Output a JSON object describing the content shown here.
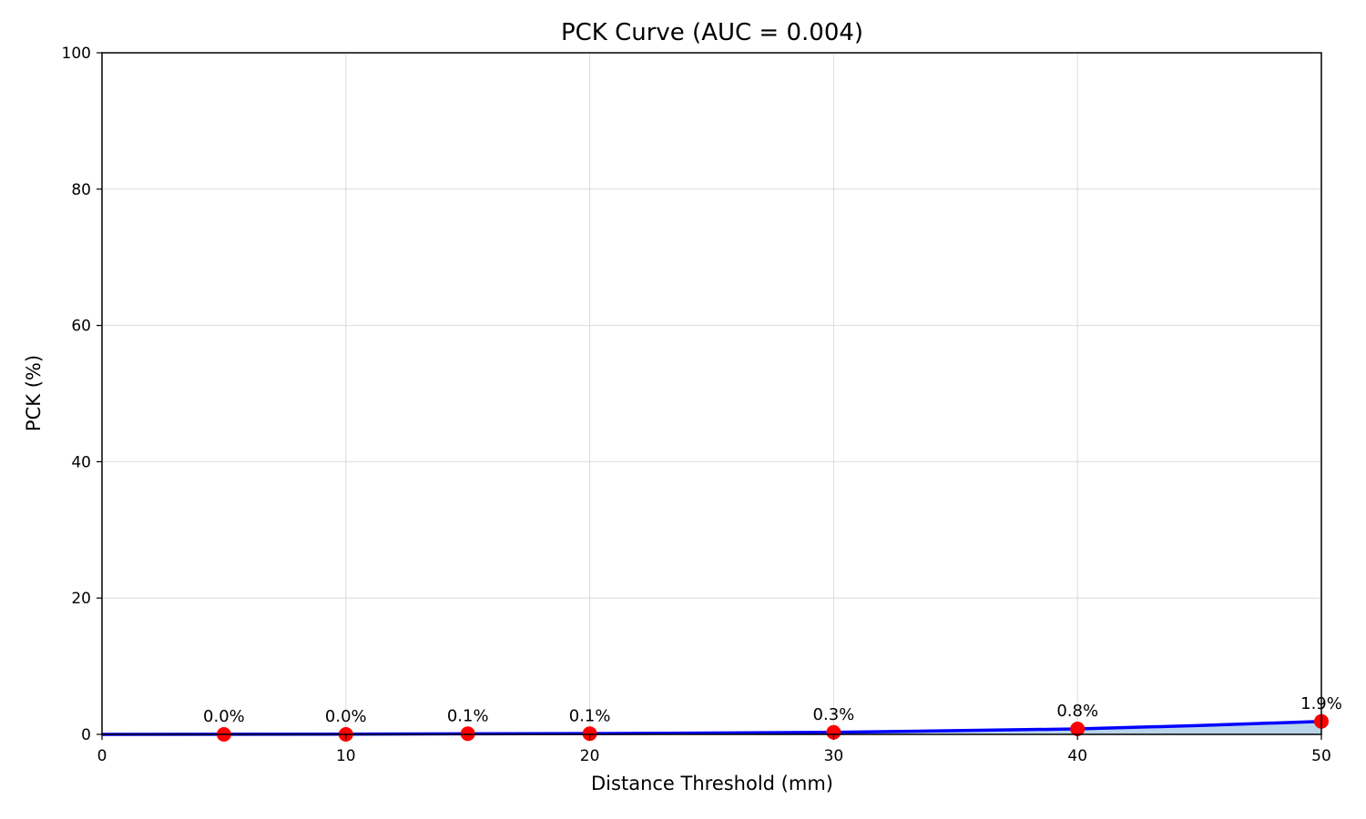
{
  "chart_data": {
    "type": "line",
    "title": "PCK Curve (AUC = 0.004)",
    "xlabel": "Distance Threshold (mm)",
    "ylabel": "PCK (%)",
    "xlim": [
      0,
      50
    ],
    "ylim": [
      0,
      100
    ],
    "xticks": [
      "0",
      "10",
      "20",
      "30",
      "40",
      "50"
    ],
    "yticks": [
      "0",
      "20",
      "40",
      "60",
      "80",
      "100"
    ],
    "grid": true,
    "line_color": "#0000ff",
    "marker_color": "#ff0000",
    "fill_color": "#b9d4ea",
    "curve": {
      "x": [
        0,
        5,
        10,
        15,
        20,
        25,
        30,
        35,
        40,
        45,
        50
      ],
      "y": [
        0,
        0.02,
        0.03,
        0.08,
        0.12,
        0.2,
        0.3,
        0.55,
        0.8,
        1.3,
        1.9
      ]
    },
    "markers": [
      {
        "x": 5,
        "y": 0.0,
        "label": "0.0%"
      },
      {
        "x": 10,
        "y": 0.0,
        "label": "0.0%"
      },
      {
        "x": 15,
        "y": 0.1,
        "label": "0.1%"
      },
      {
        "x": 20,
        "y": 0.1,
        "label": "0.1%"
      },
      {
        "x": 30,
        "y": 0.3,
        "label": "0.3%"
      },
      {
        "x": 40,
        "y": 0.8,
        "label": "0.8%"
      },
      {
        "x": 50,
        "y": 1.9,
        "label": "1.9%"
      }
    ]
  }
}
